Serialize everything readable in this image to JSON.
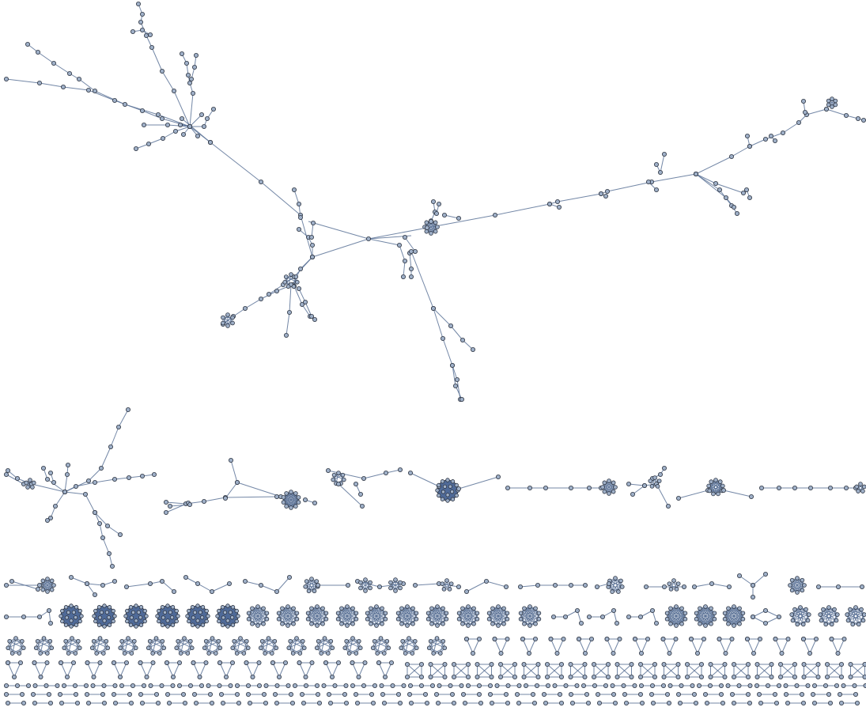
{
  "colors": {
    "background": "#ffffff",
    "edge": "#5a7296",
    "node_fill": "#9fb0c8",
    "node_dark": "#4f6a98",
    "node_stroke": "#2c3340"
  },
  "figure": {
    "kind": "network-graph-components",
    "description_visible_text": "",
    "rows": [
      {
        "name": "giant-component",
        "component_count": 1
      },
      {
        "name": "large-components-row",
        "component_count": 10
      },
      {
        "name": "medium-components-row",
        "component_count": 22
      },
      {
        "name": "dense-clusters-row",
        "component_count": 28
      },
      {
        "name": "pentagon-clusters-row",
        "component_count": 32
      },
      {
        "name": "triangle-square-row",
        "component_count": 30
      },
      {
        "name": "chain-rows",
        "component_count": 90
      }
    ]
  }
}
